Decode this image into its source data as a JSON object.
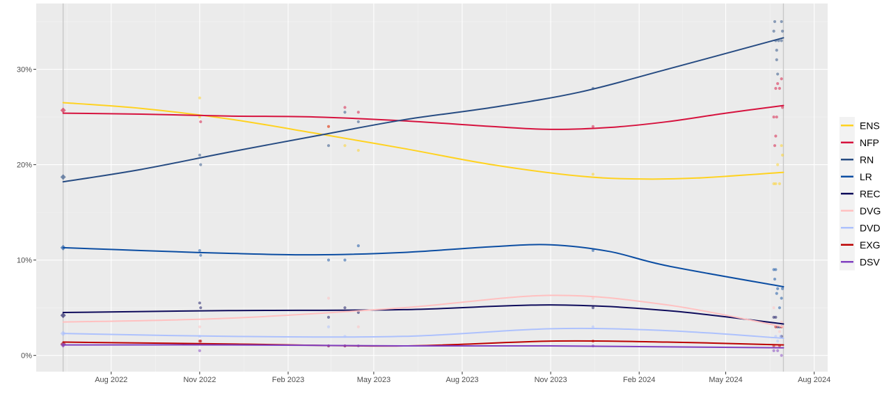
{
  "chart_data": {
    "type": "line",
    "title": "",
    "xlabel": "",
    "ylabel": "",
    "x_range": [
      "2022-05-15",
      "2024-08-15"
    ],
    "y_range": [
      -1.7,
      36.9
    ],
    "x_ticks": [
      {
        "date": "2022-08-01",
        "label": "Aug 2022"
      },
      {
        "date": "2022-11-01",
        "label": "Nov 2022"
      },
      {
        "date": "2023-02-01",
        "label": "Feb 2023"
      },
      {
        "date": "2023-05-01",
        "label": "May 2023"
      },
      {
        "date": "2023-08-01",
        "label": "Aug 2023"
      },
      {
        "date": "2023-11-01",
        "label": "Nov 2023"
      },
      {
        "date": "2024-02-01",
        "label": "Feb 2024"
      },
      {
        "date": "2024-05-01",
        "label": "May 2024"
      },
      {
        "date": "2024-08-01",
        "label": "Aug 2024"
      }
    ],
    "y_ticks": [
      {
        "value": 0,
        "label": "0%"
      },
      {
        "value": 10,
        "label": "10%"
      },
      {
        "value": 20,
        "label": "20%"
      },
      {
        "value": 30,
        "label": "30%"
      }
    ],
    "reference_dates": [
      "2022-06-12",
      "2024-06-30"
    ],
    "legend_position": "right",
    "series": [
      {
        "name": "ENS",
        "color": "#ffd21f",
        "trend": [
          [
            "2022-06-12",
            26.5
          ],
          [
            "2022-09-01",
            25.9
          ],
          [
            "2022-12-01",
            24.8
          ],
          [
            "2023-03-01",
            23.3
          ],
          [
            "2023-06-01",
            21.7
          ],
          [
            "2023-09-01",
            20.0
          ],
          [
            "2023-12-01",
            18.8
          ],
          [
            "2024-02-01",
            18.5
          ],
          [
            "2024-04-01",
            18.6
          ],
          [
            "2024-06-30",
            19.2
          ]
        ],
        "points": [
          [
            "2022-11-01",
            27.0
          ],
          [
            "2022-11-01",
            25.0
          ],
          [
            "2023-03-15",
            24.0
          ],
          [
            "2023-04-01",
            22.0
          ],
          [
            "2023-04-15",
            21.5
          ],
          [
            "2023-12-15",
            19.0
          ],
          [
            "2024-06-20",
            18.0
          ],
          [
            "2024-06-22",
            18.0
          ],
          [
            "2024-06-24",
            20.0
          ],
          [
            "2024-06-28",
            22.0
          ],
          [
            "2024-06-29",
            21.0
          ],
          [
            "2024-06-26",
            18.0
          ]
        ]
      },
      {
        "name": "NFP",
        "color": "#d6123e",
        "trend": [
          [
            "2022-06-12",
            25.4
          ],
          [
            "2022-09-01",
            25.3
          ],
          [
            "2022-12-01",
            25.1
          ],
          [
            "2023-03-01",
            25.0
          ],
          [
            "2023-06-01",
            24.6
          ],
          [
            "2023-09-01",
            24.0
          ],
          [
            "2023-11-01",
            23.7
          ],
          [
            "2024-01-01",
            23.9
          ],
          [
            "2024-03-01",
            24.5
          ],
          [
            "2024-05-01",
            25.4
          ],
          [
            "2024-06-30",
            26.2
          ]
        ],
        "points": [
          [
            "2022-06-12",
            25.7
          ],
          [
            "2022-11-02",
            24.5
          ],
          [
            "2023-03-15",
            24.0
          ],
          [
            "2023-04-01",
            26.0
          ],
          [
            "2023-04-15",
            25.5
          ],
          [
            "2023-12-15",
            24.0
          ],
          [
            "2024-06-20",
            25.0
          ],
          [
            "2024-06-21",
            22.0
          ],
          [
            "2024-06-22",
            28.0
          ],
          [
            "2024-06-24",
            28.5
          ],
          [
            "2024-06-26",
            28.0
          ],
          [
            "2024-06-28",
            29.0
          ],
          [
            "2024-06-29",
            26.0
          ],
          [
            "2024-06-22",
            23.0
          ],
          [
            "2024-06-23",
            25.0
          ]
        ]
      },
      {
        "name": "RN",
        "color": "#264b82",
        "trend": [
          [
            "2022-06-12",
            18.2
          ],
          [
            "2022-09-01",
            19.5
          ],
          [
            "2022-12-01",
            21.3
          ],
          [
            "2023-03-01",
            23.0
          ],
          [
            "2023-06-01",
            24.7
          ],
          [
            "2023-09-01",
            26.0
          ],
          [
            "2023-12-01",
            27.6
          ],
          [
            "2024-03-01",
            30.0
          ],
          [
            "2024-06-30",
            33.3
          ]
        ],
        "points": [
          [
            "2022-06-12",
            18.7
          ],
          [
            "2022-11-01",
            21.0
          ],
          [
            "2022-11-02",
            20.0
          ],
          [
            "2023-03-15",
            22.0
          ],
          [
            "2023-04-01",
            25.5
          ],
          [
            "2023-04-15",
            24.5
          ],
          [
            "2023-12-15",
            28.0
          ],
          [
            "2024-06-20",
            34.0
          ],
          [
            "2024-06-21",
            35.0
          ],
          [
            "2024-06-22",
            33.0
          ],
          [
            "2024-06-23",
            32.0
          ],
          [
            "2024-06-24",
            29.5
          ],
          [
            "2024-06-25",
            33.0
          ],
          [
            "2024-06-28",
            35.0
          ],
          [
            "2024-06-29",
            34.0
          ],
          [
            "2024-06-28",
            33.0
          ],
          [
            "2024-06-23",
            31.0
          ]
        ]
      },
      {
        "name": "LR",
        "color": "#0b4da2",
        "trend": [
          [
            "2022-06-12",
            11.3
          ],
          [
            "2022-09-01",
            11.0
          ],
          [
            "2022-12-01",
            10.7
          ],
          [
            "2023-03-01",
            10.55
          ],
          [
            "2023-06-01",
            10.8
          ],
          [
            "2023-09-01",
            11.4
          ],
          [
            "2023-11-01",
            11.6
          ],
          [
            "2024-01-01",
            10.9
          ],
          [
            "2024-03-01",
            9.4
          ],
          [
            "2024-06-30",
            7.2
          ]
        ],
        "points": [
          [
            "2022-06-12",
            11.3
          ],
          [
            "2022-11-01",
            11.0
          ],
          [
            "2022-11-02",
            10.5
          ],
          [
            "2023-03-15",
            10.0
          ],
          [
            "2023-04-01",
            10.0
          ],
          [
            "2023-04-15",
            11.5
          ],
          [
            "2023-12-15",
            11.0
          ],
          [
            "2024-06-20",
            9.0
          ],
          [
            "2024-06-21",
            8.0
          ],
          [
            "2024-06-22",
            9.0
          ],
          [
            "2024-06-24",
            7.0
          ],
          [
            "2024-06-26",
            5.0
          ],
          [
            "2024-06-28",
            6.0
          ],
          [
            "2024-06-29",
            7.0
          ],
          [
            "2024-06-23",
            6.5
          ]
        ]
      },
      {
        "name": "REC",
        "color": "#0e0b5b",
        "trend": [
          [
            "2022-06-12",
            4.5
          ],
          [
            "2022-12-01",
            4.7
          ],
          [
            "2023-06-01",
            4.8
          ],
          [
            "2023-11-01",
            5.3
          ],
          [
            "2024-03-01",
            4.7
          ],
          [
            "2024-06-30",
            3.3
          ]
        ],
        "points": [
          [
            "2022-06-12",
            4.2
          ],
          [
            "2022-11-01",
            5.5
          ],
          [
            "2022-11-02",
            5.0
          ],
          [
            "2023-03-15",
            4.0
          ],
          [
            "2023-04-01",
            5.0
          ],
          [
            "2023-04-15",
            4.5
          ],
          [
            "2023-12-15",
            5.0
          ],
          [
            "2024-06-20",
            4.0
          ],
          [
            "2024-06-22",
            4.0
          ],
          [
            "2024-06-24",
            3.0
          ],
          [
            "2024-06-26",
            3.0
          ],
          [
            "2024-06-28",
            2.0
          ]
        ]
      },
      {
        "name": "DVG",
        "color": "#ffc0c0",
        "trend": [
          [
            "2022-06-12",
            3.5
          ],
          [
            "2022-12-01",
            3.9
          ],
          [
            "2023-06-01",
            5.0
          ],
          [
            "2023-11-01",
            6.3
          ],
          [
            "2024-03-01",
            5.3
          ],
          [
            "2024-06-30",
            3.0
          ]
        ],
        "points": [
          [
            "2022-11-01",
            3.0
          ],
          [
            "2023-03-15",
            6.0
          ],
          [
            "2023-04-15",
            3.0
          ],
          [
            "2023-12-15",
            6.0
          ],
          [
            "2024-06-20",
            5.0
          ],
          [
            "2024-06-23",
            1.0
          ],
          [
            "2024-06-26",
            2.5
          ],
          [
            "2024-06-28",
            3.5
          ]
        ]
      },
      {
        "name": "DVD",
        "color": "#adc1fd",
        "trend": [
          [
            "2022-06-12",
            2.3
          ],
          [
            "2022-12-01",
            2.0
          ],
          [
            "2023-06-01",
            2.0
          ],
          [
            "2023-11-01",
            2.8
          ],
          [
            "2024-03-01",
            2.6
          ],
          [
            "2024-06-30",
            1.8
          ]
        ],
        "points": [
          [
            "2022-06-12",
            2.3
          ],
          [
            "2022-11-01",
            2.0
          ],
          [
            "2023-03-15",
            3.0
          ],
          [
            "2023-04-01",
            2.0
          ],
          [
            "2023-12-15",
            3.0
          ],
          [
            "2024-06-22",
            2.0
          ],
          [
            "2024-06-24",
            1.5
          ],
          [
            "2024-06-27",
            2.0
          ]
        ]
      },
      {
        "name": "EXG",
        "color": "#bb0000",
        "trend": [
          [
            "2022-06-12",
            1.4
          ],
          [
            "2022-12-01",
            1.2
          ],
          [
            "2023-06-01",
            1.0
          ],
          [
            "2023-11-01",
            1.5
          ],
          [
            "2024-03-01",
            1.4
          ],
          [
            "2024-06-30",
            1.1
          ]
        ],
        "points": [
          [
            "2022-06-12",
            1.2
          ],
          [
            "2022-11-01",
            1.5
          ],
          [
            "2022-11-02",
            1.5
          ],
          [
            "2023-03-15",
            1.0
          ],
          [
            "2023-04-01",
            1.0
          ],
          [
            "2023-12-15",
            1.5
          ],
          [
            "2024-06-20",
            1.0
          ],
          [
            "2024-06-22",
            3.0
          ],
          [
            "2024-06-26",
            1.0
          ],
          [
            "2024-06-28",
            3.0
          ]
        ]
      },
      {
        "name": "DSV",
        "color": "#8040c0",
        "trend": [
          [
            "2022-06-12",
            1.1
          ],
          [
            "2022-12-01",
            1.1
          ],
          [
            "2023-06-01",
            1.0
          ],
          [
            "2023-11-01",
            1.0
          ],
          [
            "2024-03-01",
            0.9
          ],
          [
            "2024-06-30",
            0.8
          ]
        ],
        "points": [
          [
            "2022-06-12",
            1.1
          ],
          [
            "2022-11-01",
            0.5
          ],
          [
            "2023-03-15",
            1.0
          ],
          [
            "2023-04-01",
            1.0
          ],
          [
            "2023-04-15",
            1.0
          ],
          [
            "2023-12-15",
            1.0
          ],
          [
            "2024-06-20",
            0.5
          ],
          [
            "2024-06-24",
            0.5
          ],
          [
            "2024-06-28",
            0.0
          ]
        ]
      }
    ]
  }
}
